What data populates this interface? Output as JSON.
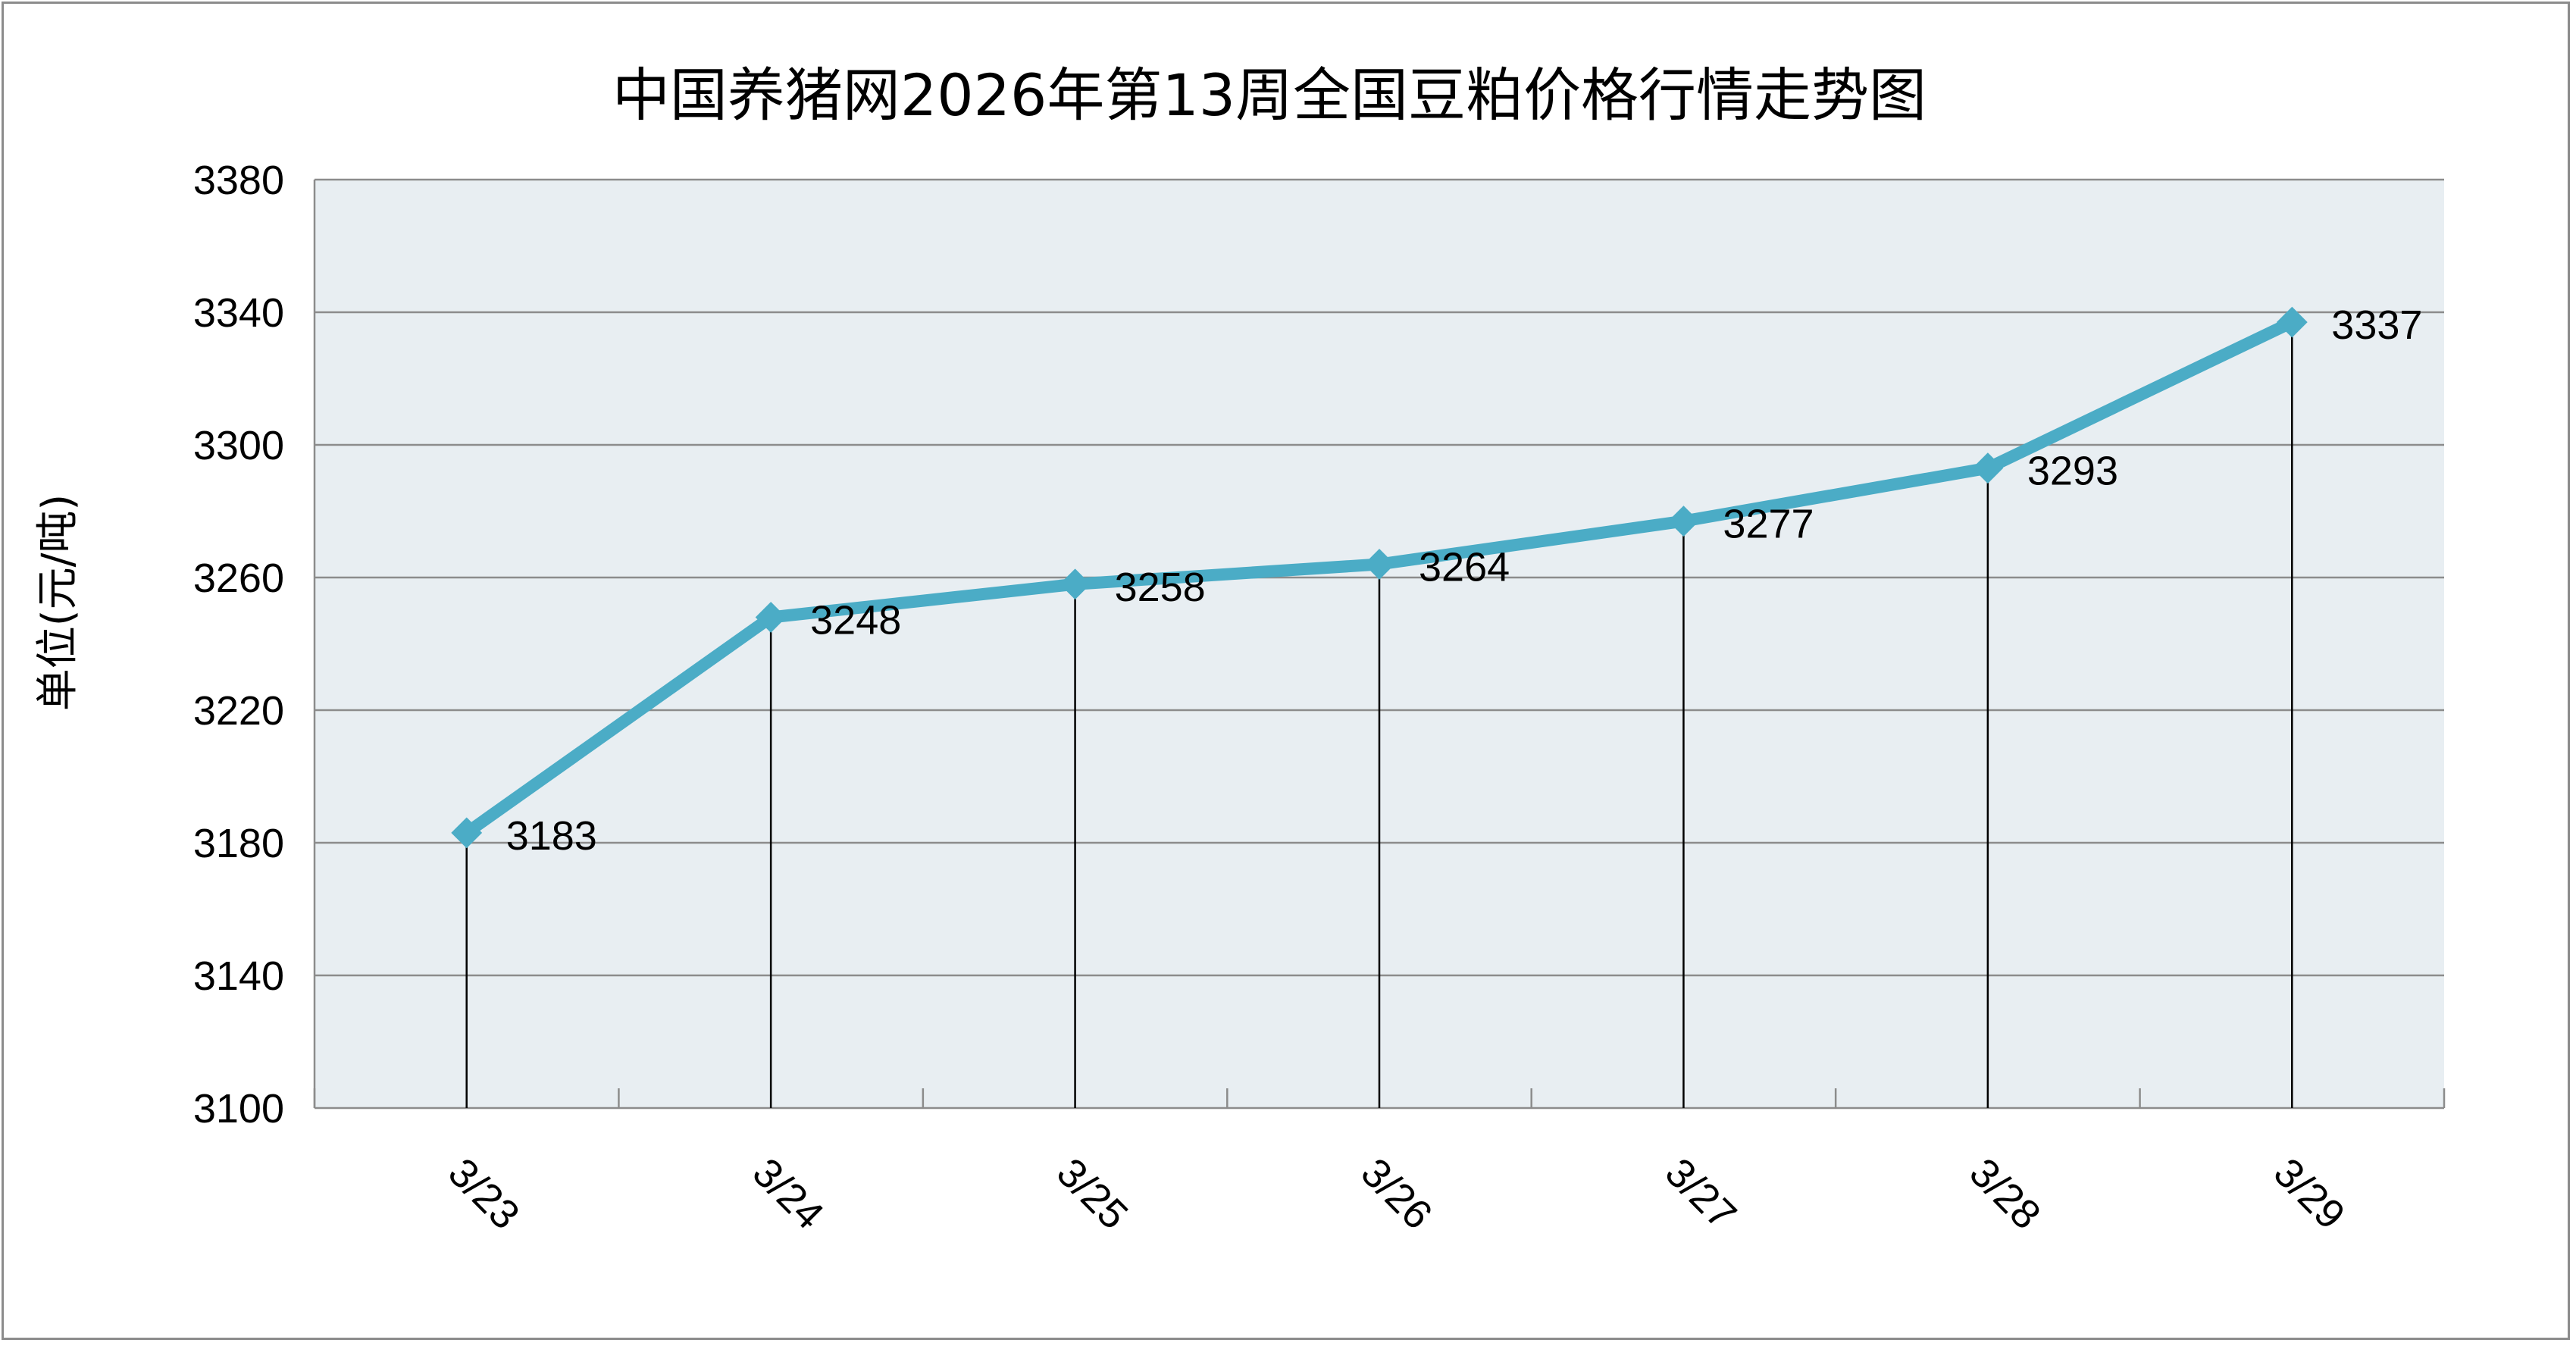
{
  "chart_data": {
    "type": "line",
    "title": "中国养猪网2026年第13周全国豆粕价格行情走势图",
    "xlabel": "",
    "ylabel": "单位(元/吨)",
    "categories": [
      "3/23",
      "3/24",
      "3/25",
      "3/26",
      "3/27",
      "3/28",
      "3/29"
    ],
    "series": [
      {
        "values": [
          3183,
          3248,
          3258,
          3264,
          3277,
          3293,
          3337
        ]
      }
    ],
    "ylim": [
      3100,
      3380
    ],
    "yticks": [
      3100,
      3140,
      3180,
      3220,
      3260,
      3300,
      3340,
      3380
    ],
    "grid": true,
    "legend": "none",
    "colors": {
      "line": "#4BACC6",
      "plot_background": "#E8EEF2",
      "gridline": "#8C8C8C",
      "drop_line": "#000000"
    }
  }
}
